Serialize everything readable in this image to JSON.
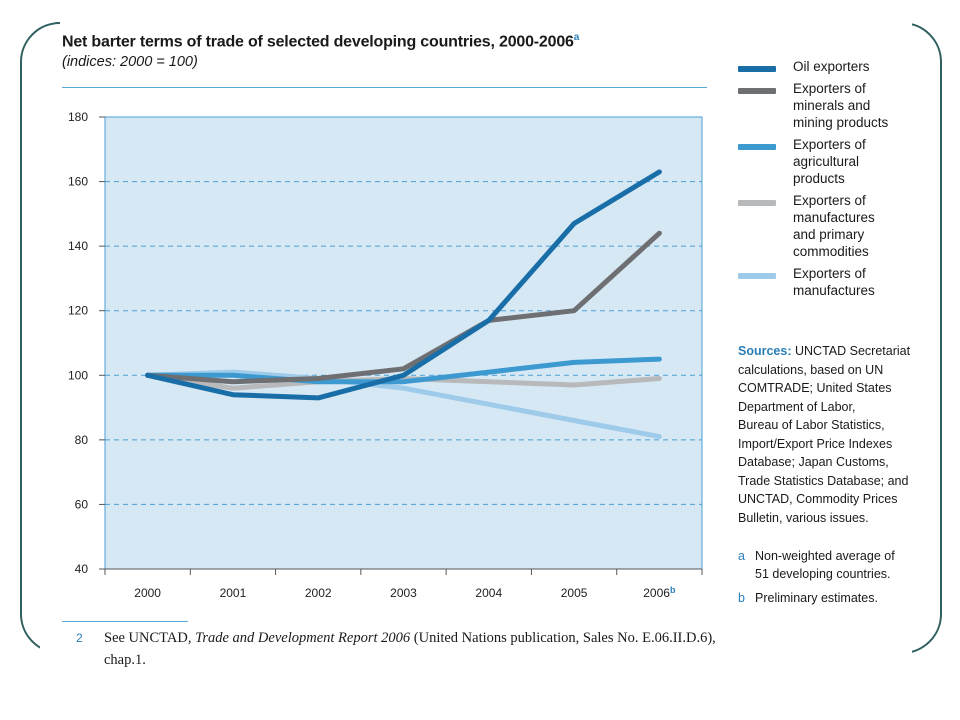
{
  "title": "Net barter terms of trade of selected developing countries, 2000-2006",
  "title_marker": "a",
  "subtitle": "(indices: 2000 = 100)",
  "chart_data": {
    "type": "line",
    "categories": [
      "2000",
      "2001",
      "2002",
      "2003",
      "2004",
      "2005",
      "2006"
    ],
    "category_tick_labels": [
      "2000",
      "2001",
      "2002",
      "2003",
      "2004",
      "2005",
      "2006"
    ],
    "last_category_marker": "b",
    "ylim": [
      40,
      180
    ],
    "yticks": [
      "40",
      "60",
      "80",
      "100",
      "120",
      "140",
      "160",
      "180"
    ],
    "grid": true,
    "legend_position": "right",
    "plot_background": "#d7e8f5",
    "series": [
      {
        "name": "Oil exporters",
        "color": "#1a6ea8",
        "values": [
          100,
          94,
          93,
          100,
          117,
          147,
          163
        ]
      },
      {
        "name": "Exporters of minerals and mining products",
        "color": "#6d6f72",
        "values": [
          100,
          98,
          99,
          102,
          117,
          120,
          144
        ]
      },
      {
        "name": "Exporters of agricultural products",
        "color": "#3d9ad1",
        "values": [
          100,
          100,
          98,
          98,
          101,
          104,
          105
        ]
      },
      {
        "name": "Exporters of manufactures and primary commodities",
        "color": "#b7b9bb",
        "values": [
          100,
          96,
          98,
          99,
          98,
          97,
          99
        ]
      },
      {
        "name": "Exporters of manufactures",
        "color": "#9ecbea",
        "values": [
          100,
          101,
          99,
          96,
          91,
          86,
          81
        ]
      }
    ]
  },
  "legend": [
    {
      "lines": [
        "Oil exporters"
      ],
      "color": "#1a6ea8"
    },
    {
      "lines": [
        "Exporters of",
        "minerals and",
        "mining products"
      ],
      "color": "#6d6f72"
    },
    {
      "lines": [
        "Exporters of",
        "agricultural",
        "products"
      ],
      "color": "#3d9ad1"
    },
    {
      "lines": [
        "Exporters of",
        "manufactures",
        "and primary",
        "commodities"
      ],
      "color": "#b7b9bb"
    },
    {
      "lines": [
        "Exporters of",
        "manufactures"
      ],
      "color": "#9ecbea"
    }
  ],
  "sources": {
    "label": "Sources:",
    "lines": [
      "UNCTAD Secretariat",
      "calculations, based on UN",
      "COMTRADE; United States",
      "Department of Labor,",
      "Bureau of Labor Statistics,",
      "Import/Export Price Indexes",
      "Database; Japan Customs,",
      "Trade Statistics Database; and",
      "UNCTAD, Commodity Prices",
      "Bulletin, various issues."
    ]
  },
  "notes": [
    {
      "marker": "a",
      "lines": [
        "Non-weighted average of",
        "51 developing countries."
      ]
    },
    {
      "marker": "b",
      "lines": [
        "Preliminary estimates."
      ]
    }
  ],
  "footnote": {
    "number": "2",
    "text_before": "See UNCTAD, ",
    "text_italic": "Trade and Development Report 2006",
    "text_after": " (United Nations publication, Sales No. E.06.II.D.6), chap.1."
  },
  "colors": {
    "frame": "#2f5f5f",
    "accent": "#2a7fb8",
    "rule": "#5aa9d6",
    "grid": "#4a9fd4"
  }
}
